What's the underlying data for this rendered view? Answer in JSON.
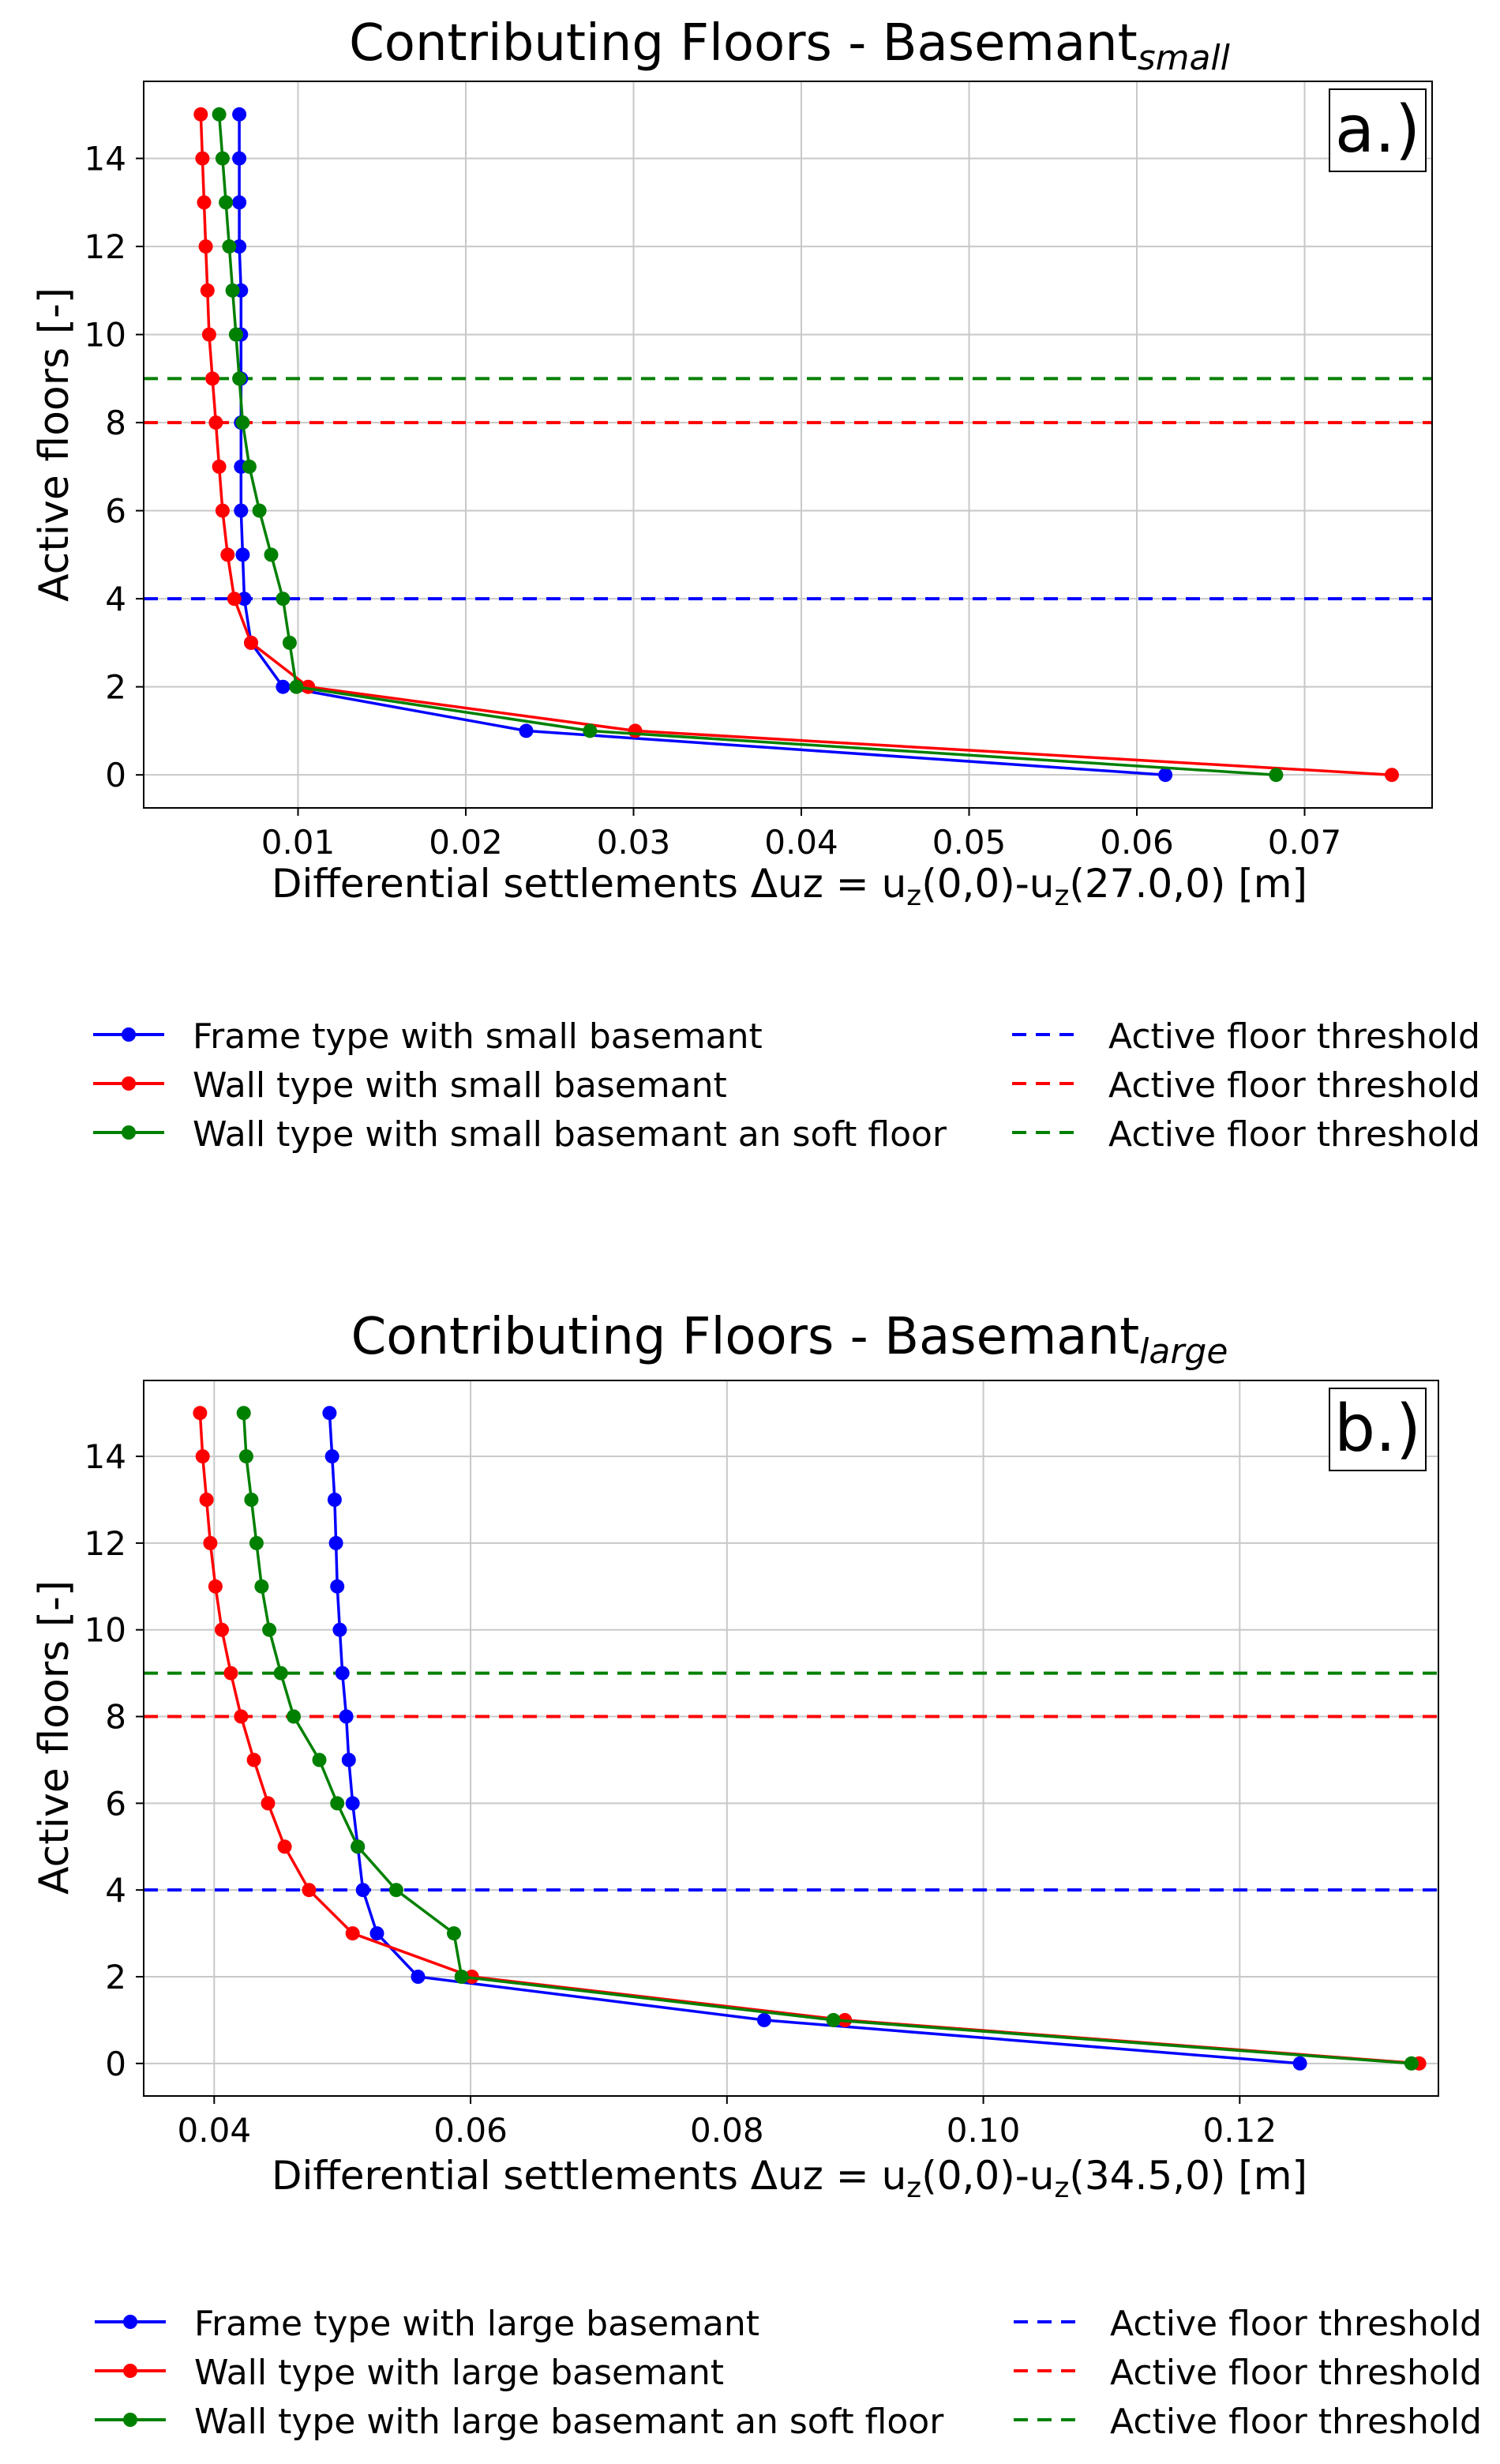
{
  "chart_data": [
    {
      "type": "line",
      "title": "Contributing Floors - Basemant",
      "title_subscript": "small",
      "panel_label": "a.)",
      "xlabel": "Differential settlements Δuz = uz(0,0)-uz(27.0,0) [m]",
      "xlabel_parts": {
        "a": "Differential settlements Δuz = u",
        "sub1": "z",
        "b": "(0,0)-u",
        "sub2": "z",
        "c": "(27.0,0) [m]"
      },
      "ylabel": "Active floors [-]",
      "xlim": [
        0.0008,
        0.0776
      ],
      "ylim": [
        -0.75,
        15.75
      ],
      "xticks": [
        0.01,
        0.02,
        0.03,
        0.04,
        0.05,
        0.06,
        0.07
      ],
      "xtick_labels": [
        "0.01",
        "0.02",
        "0.03",
        "0.04",
        "0.05",
        "0.06",
        "0.07"
      ],
      "yticks": [
        0,
        2,
        4,
        6,
        8,
        10,
        12,
        14
      ],
      "ytick_labels": [
        "0",
        "2",
        "4",
        "6",
        "8",
        "10",
        "12",
        "14"
      ],
      "grid": true,
      "legend_position": "below-plot",
      "series": [
        {
          "name": "Frame type with small basemant",
          "color": "#0000ff",
          "style": "line-marker",
          "y": [
            0,
            1,
            2,
            3,
            4,
            5,
            6,
            7,
            8,
            9,
            10,
            11,
            12,
            13,
            14,
            15
          ],
          "x": [
            0.0617,
            0.0236,
            0.0091,
            0.0072,
            0.0068,
            0.0067,
            0.0066,
            0.0066,
            0.0066,
            0.0066,
            0.0066,
            0.0066,
            0.0065,
            0.0065,
            0.0065,
            0.0065
          ]
        },
        {
          "name": "Wall type with small basemant",
          "color": "#ff0000",
          "style": "line-marker",
          "y": [
            0,
            1,
            2,
            3,
            4,
            5,
            6,
            7,
            8,
            9,
            10,
            11,
            12,
            13,
            14,
            15
          ],
          "x": [
            0.0752,
            0.0301,
            0.0106,
            0.0072,
            0.0062,
            0.0058,
            0.0055,
            0.0053,
            0.0051,
            0.0049,
            0.0047,
            0.0046,
            0.0045,
            0.0044,
            0.0043,
            0.0042
          ]
        },
        {
          "name": "Wall type with small basemant an soft floor",
          "color": "#008000",
          "style": "line-marker",
          "y": [
            0,
            1,
            2,
            3,
            4,
            5,
            6,
            7,
            8,
            9,
            10,
            11,
            12,
            13,
            14,
            15
          ],
          "x": [
            0.0683,
            0.0274,
            0.0099,
            0.0095,
            0.0091,
            0.0084,
            0.0077,
            0.0071,
            0.0067,
            0.0065,
            0.0063,
            0.0061,
            0.0059,
            0.0057,
            0.0055,
            0.0053
          ]
        },
        {
          "name": "Active floor threshold",
          "color": "#0000ff",
          "style": "dashed",
          "y_const": 4
        },
        {
          "name": "Active floor threshold",
          "color": "#ff0000",
          "style": "dashed",
          "y_const": 8
        },
        {
          "name": "Active floor threshold",
          "color": "#008000",
          "style": "dashed",
          "y_const": 9
        }
      ]
    },
    {
      "type": "line",
      "title": "Contributing Floors - Basemant",
      "title_subscript": "large",
      "panel_label": "b.)",
      "xlabel": "Differential settlements Δuz = uz(0,0)-uz(34.5,0) [m]",
      "xlabel_parts": {
        "a": "Differential settlements Δuz = u",
        "sub1": "z",
        "b": "(0,0)-u",
        "sub2": "z",
        "c": "(34.5,0) [m]"
      },
      "ylabel": "Active floors [-]",
      "xlim": [
        0.0345,
        0.1355
      ],
      "ylim": [
        -0.75,
        15.75
      ],
      "xticks": [
        0.04,
        0.06,
        0.08,
        0.1,
        0.12
      ],
      "xtick_labels": [
        "0.04",
        "0.06",
        "0.08",
        "0.10",
        "0.12"
      ],
      "yticks": [
        0,
        2,
        4,
        6,
        8,
        10,
        12,
        14
      ],
      "ytick_labels": [
        "0",
        "2",
        "4",
        "6",
        "8",
        "10",
        "12",
        "14"
      ],
      "grid": true,
      "legend_position": "below-plot",
      "series": [
        {
          "name": "Frame type with large basemant",
          "color": "#0000ff",
          "style": "line-marker",
          "y": [
            0,
            1,
            2,
            3,
            4,
            5,
            6,
            7,
            8,
            9,
            10,
            11,
            12,
            13,
            14,
            15
          ],
          "x": [
            0.1247,
            0.0829,
            0.0559,
            0.0527,
            0.0516,
            0.0512,
            0.0508,
            0.0505,
            0.0503,
            0.05,
            0.0498,
            0.0496,
            0.0495,
            0.0494,
            0.0492,
            0.049
          ]
        },
        {
          "name": "Wall type with large basemant",
          "color": "#ff0000",
          "style": "line-marker",
          "y": [
            0,
            1,
            2,
            3,
            4,
            5,
            6,
            7,
            8,
            9,
            10,
            11,
            12,
            13,
            14,
            15
          ],
          "x": [
            0.134,
            0.0892,
            0.0601,
            0.0508,
            0.0474,
            0.0455,
            0.0442,
            0.0431,
            0.0421,
            0.0413,
            0.0406,
            0.0401,
            0.0397,
            0.0394,
            0.0391,
            0.0389
          ]
        },
        {
          "name": "Wall type with large basemant an soft floor",
          "color": "#008000",
          "style": "line-marker",
          "y": [
            0,
            1,
            2,
            3,
            4,
            5,
            6,
            7,
            8,
            9,
            10,
            11,
            12,
            13,
            14,
            15
          ],
          "x": [
            0.1334,
            0.0883,
            0.0593,
            0.0587,
            0.0542,
            0.0512,
            0.0496,
            0.0482,
            0.0462,
            0.0452,
            0.0443,
            0.0437,
            0.0433,
            0.0429,
            0.0425,
            0.0423
          ]
        },
        {
          "name": "Active floor threshold",
          "color": "#0000ff",
          "style": "dashed",
          "y_const": 4
        },
        {
          "name": "Active floor threshold",
          "color": "#ff0000",
          "style": "dashed",
          "y_const": 8
        },
        {
          "name": "Active floor threshold",
          "color": "#008000",
          "style": "dashed",
          "y_const": 9
        }
      ]
    }
  ]
}
